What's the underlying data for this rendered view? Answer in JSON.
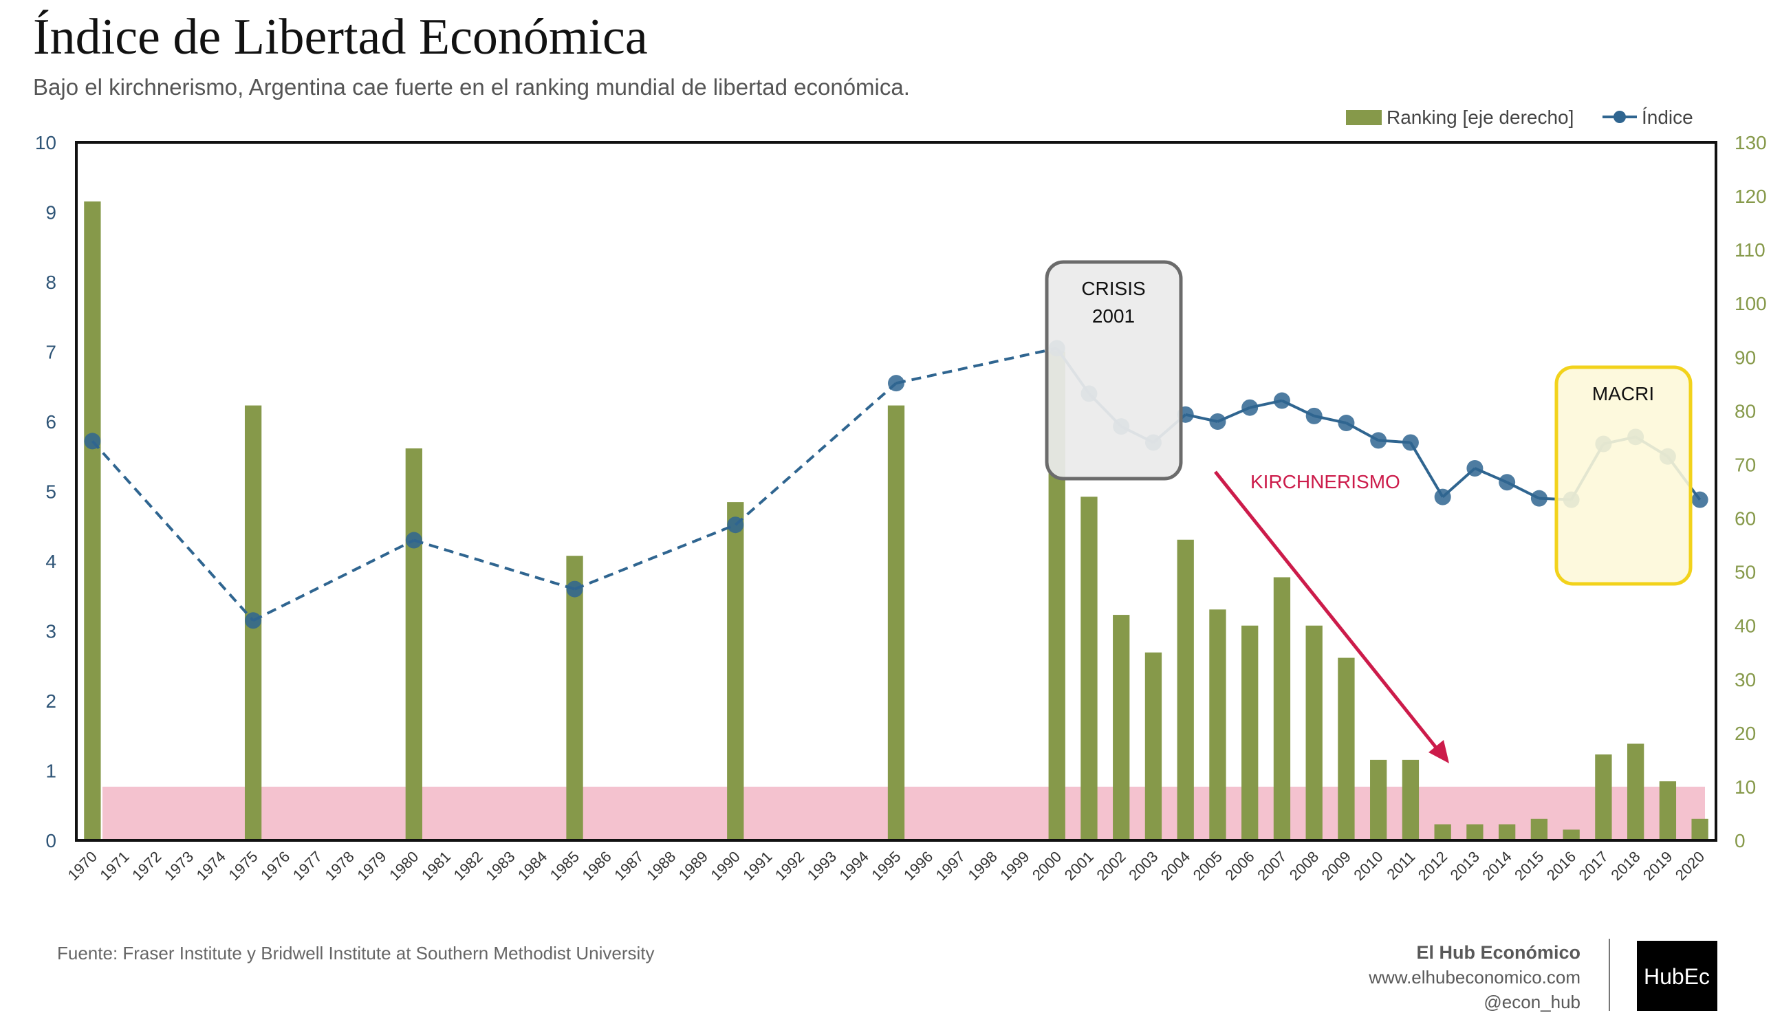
{
  "chart_data": {
    "type": "bar+line",
    "title": "Índice de Libertad Económica",
    "subtitle": "Bajo el kirchnerismo, Argentina cae fuerte en el ranking mundial de libertad económica.",
    "x": [
      "1970",
      "1971",
      "1972",
      "1973",
      "1974",
      "1975",
      "1976",
      "1977",
      "1978",
      "1979",
      "1980",
      "1981",
      "1982",
      "1983",
      "1984",
      "1985",
      "1986",
      "1987",
      "1988",
      "1989",
      "1990",
      "1991",
      "1992",
      "1993",
      "1994",
      "1995",
      "1996",
      "1997",
      "1998",
      "1999",
      "2000",
      "2001",
      "2002",
      "2003",
      "2004",
      "2005",
      "2006",
      "2007",
      "2008",
      "2009",
      "2010",
      "2011",
      "2012",
      "2013",
      "2014",
      "2015",
      "2016",
      "2017",
      "2018",
      "2019",
      "2020"
    ],
    "left_axis": {
      "ylim": [
        0,
        10
      ],
      "ticks": [
        "0",
        "1",
        "2",
        "3",
        "4",
        "5",
        "6",
        "7",
        "8",
        "9",
        "10"
      ]
    },
    "right_axis": {
      "ylim": [
        0,
        130
      ],
      "ticks": [
        "0",
        "10",
        "20",
        "30",
        "40",
        "50",
        "60",
        "70",
        "80",
        "90",
        "100",
        "110",
        "120",
        "130"
      ]
    },
    "series": [
      {
        "name": "Ranking [eje derecho]",
        "kind": "bar",
        "axis": "right",
        "color": "#86994a",
        "values": [
          119,
          null,
          null,
          null,
          null,
          81,
          null,
          null,
          null,
          null,
          73,
          null,
          null,
          null,
          null,
          53,
          null,
          null,
          null,
          null,
          63,
          null,
          null,
          null,
          null,
          81,
          null,
          null,
          null,
          null,
          91,
          64,
          42,
          35,
          56,
          43,
          40,
          49,
          40,
          34,
          15,
          15,
          3,
          3,
          3,
          4,
          2,
          16,
          18,
          11,
          4
        ]
      },
      {
        "name": "Índice",
        "kind": "line",
        "axis": "left",
        "color": "#2f6590",
        "values": [
          5.72,
          null,
          null,
          null,
          null,
          3.15,
          null,
          null,
          null,
          null,
          4.3,
          null,
          null,
          null,
          null,
          3.6,
          null,
          null,
          null,
          null,
          4.52,
          null,
          null,
          null,
          null,
          6.55,
          null,
          null,
          null,
          null,
          7.05,
          6.4,
          5.93,
          5.7,
          6.1,
          6.0,
          6.2,
          6.3,
          6.08,
          5.98,
          5.73,
          5.7,
          4.92,
          5.33,
          5.13,
          4.9,
          4.88,
          5.68,
          5.78,
          5.5,
          4.88
        ]
      }
    ],
    "reference_band": {
      "axis": "right",
      "range": [
        0,
        10
      ],
      "color": "#f4c2cf"
    },
    "annotations": [
      {
        "text": "CRISIS 2001",
        "line1": "CRISIS",
        "line2": "2001",
        "color": "#6b6b6b"
      },
      {
        "text": "KIRCHNERISMO",
        "color": "#cc1b4a"
      },
      {
        "text": "MACRI",
        "color": "#f2d21b"
      }
    ],
    "legend": {
      "placement": "top-right"
    }
  },
  "footer": {
    "source": "Fuente: Fraser Institute y Bridwell Institute at Southern Methodist University",
    "brand_name": "El Hub Económico",
    "brand_url": "www.elhubeconomico.com",
    "brand_handle": "@econ_hub",
    "logo_text": "HubEc"
  }
}
